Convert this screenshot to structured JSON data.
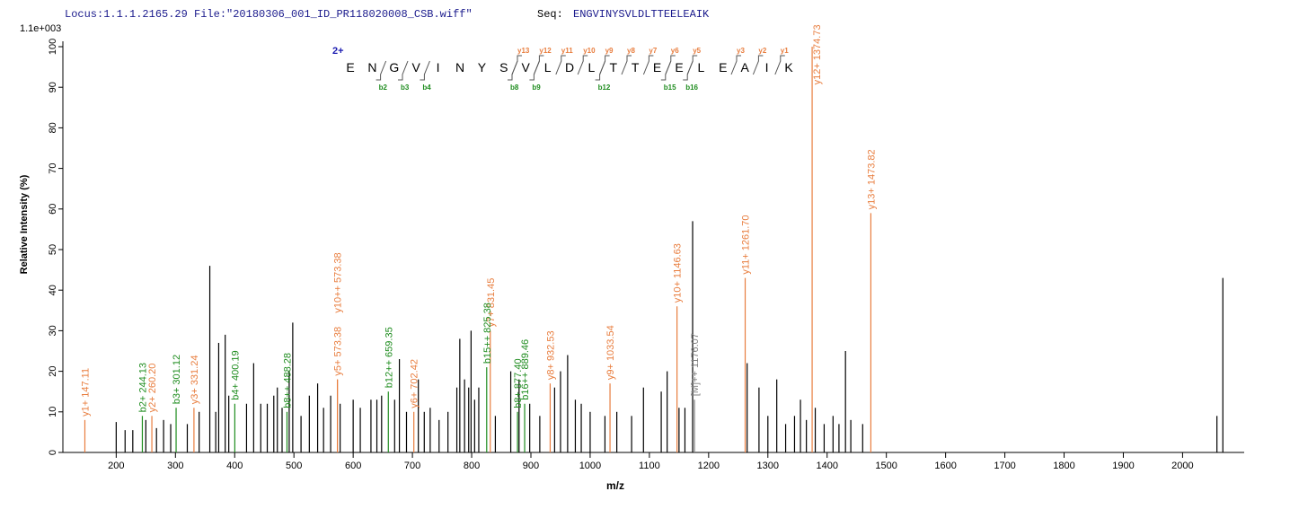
{
  "header": {
    "locus": "Locus:1.1.1.2165.29 File:\"20180306_001_ID_PR118020008_CSB.wiff\"",
    "seq_label": "Seq:",
    "seq": "ENGVINYSVLDLTTEELEAIK"
  },
  "sequence": {
    "charge": "2+",
    "residues": [
      "E",
      "N",
      "G",
      "V",
      "I",
      "N",
      "Y",
      "S",
      "V",
      "L",
      "D",
      "L",
      "T",
      "T",
      "E",
      "E",
      "L",
      "E",
      "A",
      "I",
      "K"
    ],
    "y_ions": [
      "y13",
      "y12",
      "y11",
      "y10",
      "y9",
      "y8",
      "y7",
      "y6",
      "y5",
      "y3",
      "y2",
      "y1"
    ],
    "b_ions": [
      "b2",
      "b3",
      "b4",
      "b8",
      "b9",
      "b12",
      "b15",
      "b16"
    ]
  },
  "chart_data": {
    "type": "stem",
    "scale_label": "1.1e+003",
    "ylabel": "Relative Intensity (%)",
    "xlabel": "m/z",
    "xlim": [
      110,
      2104
    ],
    "ylim": [
      0,
      100
    ],
    "xticks": [
      200,
      300,
      400,
      500,
      600,
      700,
      800,
      900,
      1000,
      1100,
      1200,
      1300,
      1400,
      1500,
      1600,
      1700,
      1800,
      1900,
      2000
    ],
    "yticks": [
      0,
      10,
      20,
      30,
      40,
      50,
      60,
      70,
      80,
      90,
      100
    ],
    "series": [
      {
        "color": "#000000",
        "x": [
          200,
          215,
          228,
          250,
          268,
          280,
          292,
          320,
          340,
          358,
          368,
          373,
          384,
          390,
          420,
          432,
          444,
          455,
          466,
          472,
          480,
          492,
          498,
          512,
          526,
          540,
          550,
          562,
          578,
          600,
          612,
          630,
          640,
          648,
          670,
          678,
          690,
          710,
          720,
          730,
          745,
          760,
          775,
          780,
          788,
          795,
          799,
          805,
          812,
          840,
          866,
          880,
          898,
          915,
          940,
          950,
          962,
          975,
          985,
          1000,
          1025,
          1045,
          1070,
          1090,
          1120,
          1130,
          1150,
          1160,
          1173,
          1265,
          1285,
          1300,
          1315,
          1330,
          1345,
          1355,
          1365,
          1380,
          1395,
          1410,
          1420,
          1431,
          1440,
          1460,
          2058,
          2068
        ],
        "values": [
          7.5,
          5.5,
          5.5,
          8,
          6,
          8,
          7,
          7,
          10,
          46,
          10,
          27,
          29,
          14,
          12,
          22,
          12,
          12,
          14,
          16,
          11,
          20,
          32,
          9,
          14,
          17,
          11,
          14,
          12,
          13,
          11,
          13,
          13,
          14,
          13,
          23,
          10,
          18,
          10,
          11,
          8,
          10,
          16,
          28,
          18,
          16,
          30,
          13,
          16,
          9,
          20,
          18,
          12,
          9,
          16,
          20,
          24,
          13,
          12,
          10,
          9,
          10,
          9,
          16,
          15,
          20,
          11,
          11,
          57,
          22,
          16,
          9,
          18,
          7,
          9,
          13,
          8,
          11,
          7,
          9,
          7,
          25,
          8,
          7,
          9,
          43
        ]
      },
      {
        "color": "#e87d3e",
        "x": [
          147.11,
          260.2,
          331.24,
          573.38,
          573.38,
          702.42,
          831.45,
          932.53,
          1033.54,
          1146.63,
          1261.7,
          1374.73,
          1473.82
        ],
        "values": [
          8,
          9,
          11,
          18,
          18,
          10,
          30,
          17,
          17,
          36,
          43,
          100,
          59
        ],
        "labels": [
          "y1+ 147.11",
          "y2+ 260.20",
          "y3+ 331.24",
          "y5+ 573.38",
          "y10++ 573.38",
          "y6+ 702.42",
          "y7+ 831.45",
          "y8+ 932.53",
          "y9+ 1033.54",
          "y10+ 1146.63",
          "y11+ 1261.70",
          "y12+ 1374.73",
          "y13+ 1473.82"
        ]
      },
      {
        "color": "#1e8c1e",
        "x": [
          244.13,
          301.12,
          400.19,
          488.28,
          659.35,
          825.38,
          877.4,
          889.46
        ],
        "values": [
          9,
          11,
          12,
          10,
          15,
          21,
          10,
          12
        ],
        "labels": [
          "b2+ 244.13",
          "b3+ 301.12",
          "b4+ 400.19",
          "b8++ 488.28",
          "b12++ 659.35",
          "b15++ 825.38",
          "b8+ 877.40",
          "b16++ 889.46"
        ]
      },
      {
        "color": "#808080",
        "x": [
          1176.07
        ],
        "values": [
          13
        ],
        "labels": [
          "[M]++ 1176.07"
        ]
      }
    ]
  }
}
